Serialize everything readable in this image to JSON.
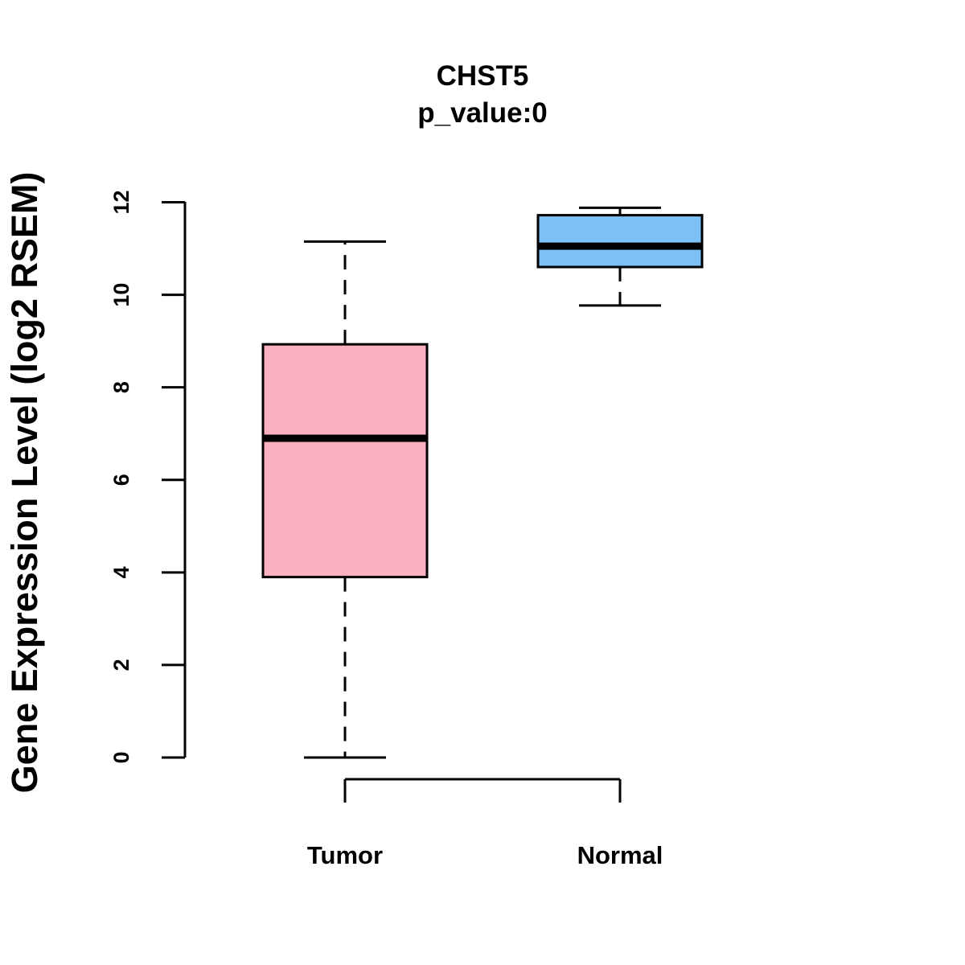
{
  "chart_data": {
    "type": "boxplot",
    "title": "CHST5",
    "subtitle": "p_value:0",
    "xlabel": "",
    "ylabel": "Gene Expression Level (log2 RSEM)",
    "ylim": [
      0,
      12
    ],
    "yticks": [
      0,
      2,
      4,
      6,
      8,
      10,
      12
    ],
    "ytick_labels": [
      "0",
      "2",
      "4",
      "6",
      "8",
      "10",
      "12"
    ],
    "grid": false,
    "categories": [
      "Tumor",
      "Normal"
    ],
    "series": [
      {
        "name": "Tumor",
        "color": "#FBB0C2",
        "whisker_low": 0.0,
        "q1": 3.9,
        "median": 6.9,
        "q3": 8.93,
        "whisker_high": 11.15
      },
      {
        "name": "Normal",
        "color": "#7BC0F7",
        "whisker_low": 9.77,
        "q1": 10.6,
        "median": 11.05,
        "q3": 11.72,
        "whisker_high": 11.88
      }
    ]
  }
}
